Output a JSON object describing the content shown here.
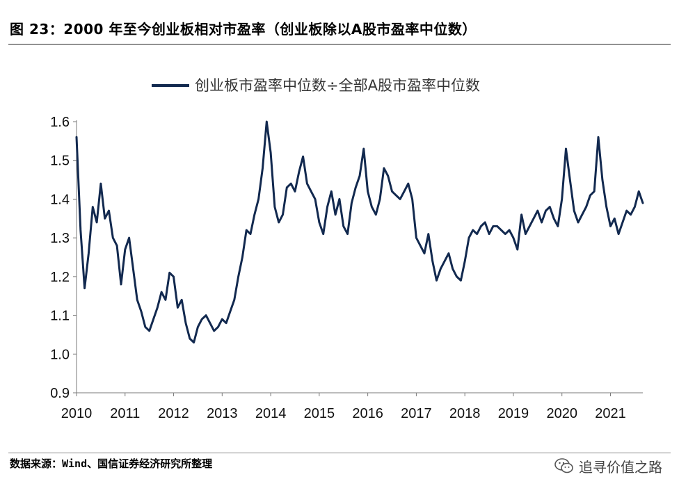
{
  "header": {
    "title": "图 23：2000 年至今创业板相对市盈率（创业板除以A股市盈率中位数）"
  },
  "footer": {
    "source": "数据来源：Wind、国信证券经济研究所整理",
    "watermark": "追寻价值之路",
    "watermark_icon": "wechat-icon"
  },
  "chart_data": {
    "type": "line",
    "legend_position": "top-center",
    "grid": false,
    "line_color": "#12294f",
    "ylim": [
      0.9,
      1.6
    ],
    "y_ticks": [
      "0.9",
      "1.0",
      "1.1",
      "1.2",
      "1.3",
      "1.4",
      "1.5",
      "1.6"
    ],
    "xlim": [
      "2010-01",
      "2021-09"
    ],
    "x_ticks": [
      "2010",
      "2011",
      "2012",
      "2013",
      "2014",
      "2015",
      "2016",
      "2017",
      "2018",
      "2019",
      "2020",
      "2021"
    ],
    "series": [
      {
        "name": "创业板市盈率中位数÷全部A股市盈率中位数",
        "x": [
          "2010-01",
          "2010-02",
          "2010-03",
          "2010-04",
          "2010-05",
          "2010-06",
          "2010-07",
          "2010-08",
          "2010-09",
          "2010-10",
          "2010-11",
          "2010-12",
          "2011-01",
          "2011-02",
          "2011-03",
          "2011-04",
          "2011-05",
          "2011-06",
          "2011-07",
          "2011-08",
          "2011-09",
          "2011-10",
          "2011-11",
          "2011-12",
          "2012-01",
          "2012-02",
          "2012-03",
          "2012-04",
          "2012-05",
          "2012-06",
          "2012-07",
          "2012-08",
          "2012-09",
          "2012-10",
          "2012-11",
          "2012-12",
          "2013-01",
          "2013-02",
          "2013-03",
          "2013-04",
          "2013-05",
          "2013-06",
          "2013-07",
          "2013-08",
          "2013-09",
          "2013-10",
          "2013-11",
          "2013-12",
          "2014-01",
          "2014-02",
          "2014-03",
          "2014-04",
          "2014-05",
          "2014-06",
          "2014-07",
          "2014-08",
          "2014-09",
          "2014-10",
          "2014-11",
          "2014-12",
          "2015-01",
          "2015-02",
          "2015-03",
          "2015-04",
          "2015-05",
          "2015-06",
          "2015-07",
          "2015-08",
          "2015-09",
          "2015-10",
          "2015-11",
          "2015-12",
          "2016-01",
          "2016-02",
          "2016-03",
          "2016-04",
          "2016-05",
          "2016-06",
          "2016-07",
          "2016-08",
          "2016-09",
          "2016-10",
          "2016-11",
          "2016-12",
          "2017-01",
          "2017-02",
          "2017-03",
          "2017-04",
          "2017-05",
          "2017-06",
          "2017-07",
          "2017-08",
          "2017-09",
          "2017-10",
          "2017-11",
          "2017-12",
          "2018-01",
          "2018-02",
          "2018-03",
          "2018-04",
          "2018-05",
          "2018-06",
          "2018-07",
          "2018-08",
          "2018-09",
          "2018-10",
          "2018-11",
          "2018-12",
          "2019-01",
          "2019-02",
          "2019-03",
          "2019-04",
          "2019-05",
          "2019-06",
          "2019-07",
          "2019-08",
          "2019-09",
          "2019-10",
          "2019-11",
          "2019-12",
          "2020-01",
          "2020-02",
          "2020-03",
          "2020-04",
          "2020-05",
          "2020-06",
          "2020-07",
          "2020-08",
          "2020-09",
          "2020-10",
          "2020-11",
          "2020-12",
          "2021-01",
          "2021-02",
          "2021-03",
          "2021-04",
          "2021-05",
          "2021-06",
          "2021-07",
          "2021-08",
          "2021-09"
        ],
        "values": [
          1.56,
          1.32,
          1.17,
          1.26,
          1.38,
          1.34,
          1.44,
          1.35,
          1.37,
          1.3,
          1.28,
          1.18,
          1.27,
          1.3,
          1.22,
          1.14,
          1.11,
          1.07,
          1.06,
          1.09,
          1.12,
          1.16,
          1.14,
          1.21,
          1.2,
          1.12,
          1.14,
          1.08,
          1.04,
          1.03,
          1.07,
          1.09,
          1.1,
          1.08,
          1.06,
          1.07,
          1.09,
          1.08,
          1.11,
          1.14,
          1.2,
          1.25,
          1.32,
          1.31,
          1.36,
          1.4,
          1.48,
          1.6,
          1.52,
          1.38,
          1.34,
          1.36,
          1.43,
          1.44,
          1.42,
          1.47,
          1.51,
          1.44,
          1.42,
          1.4,
          1.34,
          1.31,
          1.38,
          1.42,
          1.36,
          1.4,
          1.33,
          1.31,
          1.39,
          1.43,
          1.46,
          1.53,
          1.42,
          1.38,
          1.36,
          1.4,
          1.48,
          1.46,
          1.42,
          1.41,
          1.4,
          1.42,
          1.44,
          1.4,
          1.3,
          1.28,
          1.26,
          1.31,
          1.24,
          1.19,
          1.22,
          1.24,
          1.26,
          1.22,
          1.2,
          1.19,
          1.24,
          1.3,
          1.32,
          1.31,
          1.33,
          1.34,
          1.31,
          1.33,
          1.33,
          1.32,
          1.31,
          1.32,
          1.3,
          1.27,
          1.36,
          1.31,
          1.33,
          1.35,
          1.37,
          1.34,
          1.37,
          1.38,
          1.35,
          1.33,
          1.4,
          1.53,
          1.45,
          1.37,
          1.34,
          1.36,
          1.38,
          1.41,
          1.42,
          1.56,
          1.45,
          1.38,
          1.33,
          1.35,
          1.31,
          1.34,
          1.37,
          1.36,
          1.38,
          1.42,
          1.39
        ]
      }
    ]
  }
}
